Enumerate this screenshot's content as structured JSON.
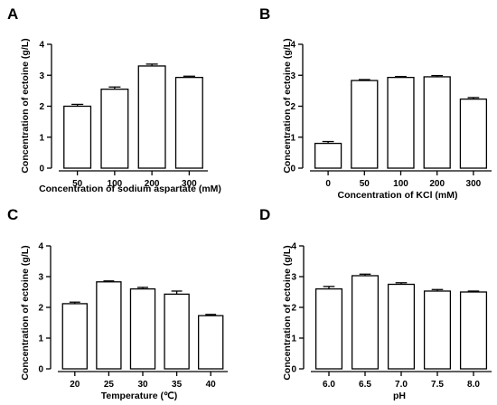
{
  "chart_data": [
    {
      "panel": "A",
      "type": "bar",
      "categories": [
        "50",
        "100",
        "200",
        "300"
      ],
      "values": [
        2.0,
        2.55,
        3.3,
        2.93
      ],
      "errors": [
        0.06,
        0.07,
        0.06,
        0.04
      ],
      "xlabel": "Concentration of sodium aspartate (mM)",
      "ylabel": "Concentration of ectoine (g/L)",
      "ylim": [
        0,
        4
      ],
      "yticks": [
        "0",
        "1",
        "2",
        "3",
        "4"
      ]
    },
    {
      "panel": "B",
      "type": "bar",
      "categories": [
        "0",
        "50",
        "100",
        "200",
        "300"
      ],
      "values": [
        0.8,
        2.83,
        2.93,
        2.95,
        2.23
      ],
      "errors": [
        0.06,
        0.03,
        0.03,
        0.04,
        0.05
      ],
      "xlabel": "Concentration of KCl (mM)",
      "ylabel": "Concentration of ectoine (g/L)",
      "ylim": [
        0,
        4
      ],
      "yticks": [
        "0",
        "1",
        "2",
        "3",
        "4"
      ]
    },
    {
      "panel": "C",
      "type": "bar",
      "categories": [
        "20",
        "25",
        "30",
        "35",
        "40"
      ],
      "values": [
        2.12,
        2.83,
        2.6,
        2.43,
        1.73
      ],
      "errors": [
        0.05,
        0.03,
        0.05,
        0.1,
        0.04
      ],
      "xlabel": "Temperature (℃)",
      "ylabel": "Concentration of ectoine (g/L)",
      "ylim": [
        0,
        4
      ],
      "yticks": [
        "0",
        "1",
        "2",
        "3",
        "4"
      ]
    },
    {
      "panel": "D",
      "type": "bar",
      "categories": [
        "6.0",
        "6.5",
        "7.0",
        "7.5",
        "8.0"
      ],
      "values": [
        2.6,
        3.03,
        2.75,
        2.53,
        2.5
      ],
      "errors": [
        0.08,
        0.05,
        0.05,
        0.05,
        0.03
      ],
      "xlabel": "pH",
      "ylabel": "Concentration of ectoine (g/L)",
      "ylim": [
        0,
        4
      ],
      "yticks": [
        "0",
        "1",
        "2",
        "3",
        "4"
      ]
    }
  ]
}
